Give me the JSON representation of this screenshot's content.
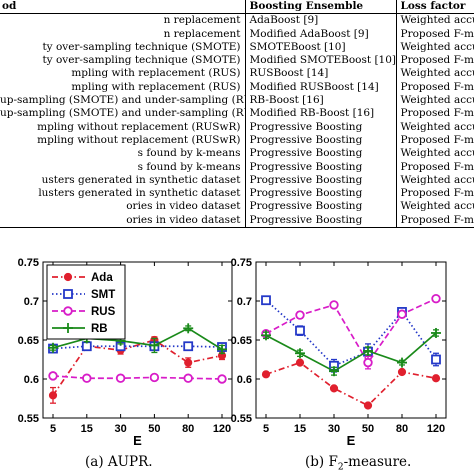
{
  "table": {
    "headers": [
      "od",
      "Boosting Ensemble",
      "Loss factor"
    ],
    "rows": [
      [
        "n replacement",
        "AdaBoost [9]",
        "Weighted accu"
      ],
      [
        "n replacement",
        "Modified AdaBoost [9]",
        "Proposed F-m"
      ],
      [
        "ty over-sampling technique (SMOTE)",
        "SMOTEBoost [10]",
        "Weighted accu"
      ],
      [
        "ty over-sampling technique (SMOTE)",
        "Modified SMOTEBoost [10]",
        "Proposed F-m"
      ],
      [
        "mpling with replacement (RUS)",
        "RUSBoost [14]",
        "Weighted accu"
      ],
      [
        "mpling with replacement (RUS)",
        "Modified RUSBoost [14]",
        "Proposed F-m"
      ],
      [
        "up-sampling (SMOTE) and under-sampling (RUS)",
        "RB-Boost [16]",
        "Weighted accu"
      ],
      [
        "up-sampling (SMOTE) and under-sampling (RUS)",
        "Modified RB-Boost [16]",
        "Proposed F-m"
      ],
      [
        "mpling without replacement (RUSwR)",
        "Progressive Boosting",
        "Weighted accu"
      ],
      [
        "mpling without replacement (RUSwR)",
        "Progressive Boosting",
        "Proposed F-m"
      ],
      [
        "s found by k-means",
        "Progressive Boosting",
        "Weighted accu"
      ],
      [
        "s found by k-means",
        "Progressive Boosting",
        "Proposed F-m"
      ],
      [
        "usters generated in synthetic dataset",
        "Progressive Boosting",
        "Weighted accu"
      ],
      [
        "lusters generated in synthetic dataset",
        "Progressive Boosting",
        "Proposed F-m"
      ],
      [
        "ories in video dataset",
        "Progressive Boosting",
        "Weighted accu"
      ],
      [
        "ories in video dataset",
        "Progressive Boosting",
        "Proposed F-m"
      ]
    ]
  },
  "captions": {
    "a": "(a) AUPR.",
    "b_pre": "(b) F",
    "b_sub": "2",
    "b_post": "-measure."
  },
  "chart_data": [
    {
      "type": "line",
      "x": [
        "5",
        "15",
        "30",
        "50",
        "80",
        "120"
      ],
      "xlabel": "E",
      "ylabel": "",
      "ylim": [
        0.55,
        0.75
      ],
      "yticks": [
        "0.55",
        "0.6",
        "0.65",
        "0.7",
        "0.75"
      ],
      "legend_position": "top-left",
      "series": [
        {
          "name": "Ada",
          "color": "#e0202e",
          "dash": "dashdot",
          "marker": "filled-circle",
          "values": [
            0.579,
            0.642,
            0.637,
            0.65,
            0.621,
            0.63
          ],
          "errors": [
            0.01,
            0.003,
            0.005,
            0.004,
            0.006,
            0.005
          ]
        },
        {
          "name": "SMT",
          "color": "#2438c8",
          "dash": "dotted",
          "marker": "square",
          "values": [
            0.639,
            0.642,
            0.642,
            0.642,
            0.642,
            0.641
          ]
        },
        {
          "name": "RUS",
          "color": "#d81cc8",
          "dash": "dashed",
          "marker": "circle",
          "values": [
            0.604,
            0.601,
            0.601,
            0.602,
            0.601,
            0.6
          ]
        },
        {
          "name": "RB",
          "color": "#1a8a1a",
          "dash": "solid",
          "marker": "plus",
          "values": [
            0.64,
            0.652,
            0.649,
            0.643,
            0.665,
            0.638
          ],
          "errors": [
            0.003,
            0.004,
            0.004,
            0.009,
            0.003,
            0.005
          ]
        }
      ]
    },
    {
      "type": "line",
      "x": [
        "5",
        "15",
        "30",
        "50",
        "80",
        "120"
      ],
      "xlabel": "E",
      "ylabel": "",
      "ylim": [
        0.55,
        0.75
      ],
      "yticks": [
        "0.55",
        "0.6",
        "0.65",
        "0.7",
        "0.75"
      ],
      "series": [
        {
          "name": "Ada",
          "color": "#e0202e",
          "dash": "dashdot",
          "marker": "filled-circle",
          "values": [
            0.606,
            0.621,
            0.588,
            0.566,
            0.609,
            0.601
          ]
        },
        {
          "name": "SMT",
          "color": "#2438c8",
          "dash": "dotted",
          "marker": "square",
          "values": [
            0.701,
            0.662,
            0.617,
            0.635,
            0.686,
            0.625
          ],
          "errors": [
            0.004,
            0.006,
            0.008,
            0.01,
            0.004,
            0.008
          ]
        },
        {
          "name": "RUS",
          "color": "#d81cc8",
          "dash": "dashed",
          "marker": "circle",
          "values": [
            0.658,
            0.682,
            0.695,
            0.621,
            0.683,
            0.703
          ],
          "errors": [
            0.004,
            0.004,
            0.003,
            0.008,
            0.004,
            0.003
          ]
        },
        {
          "name": "RB",
          "color": "#1a8a1a",
          "dash": "solid",
          "marker": "plus",
          "values": [
            0.656,
            0.633,
            0.61,
            0.636,
            0.621,
            0.659
          ],
          "errors": [
            0.004,
            0.004,
            0.005,
            0.005,
            0.003,
            0.004
          ]
        }
      ]
    }
  ]
}
